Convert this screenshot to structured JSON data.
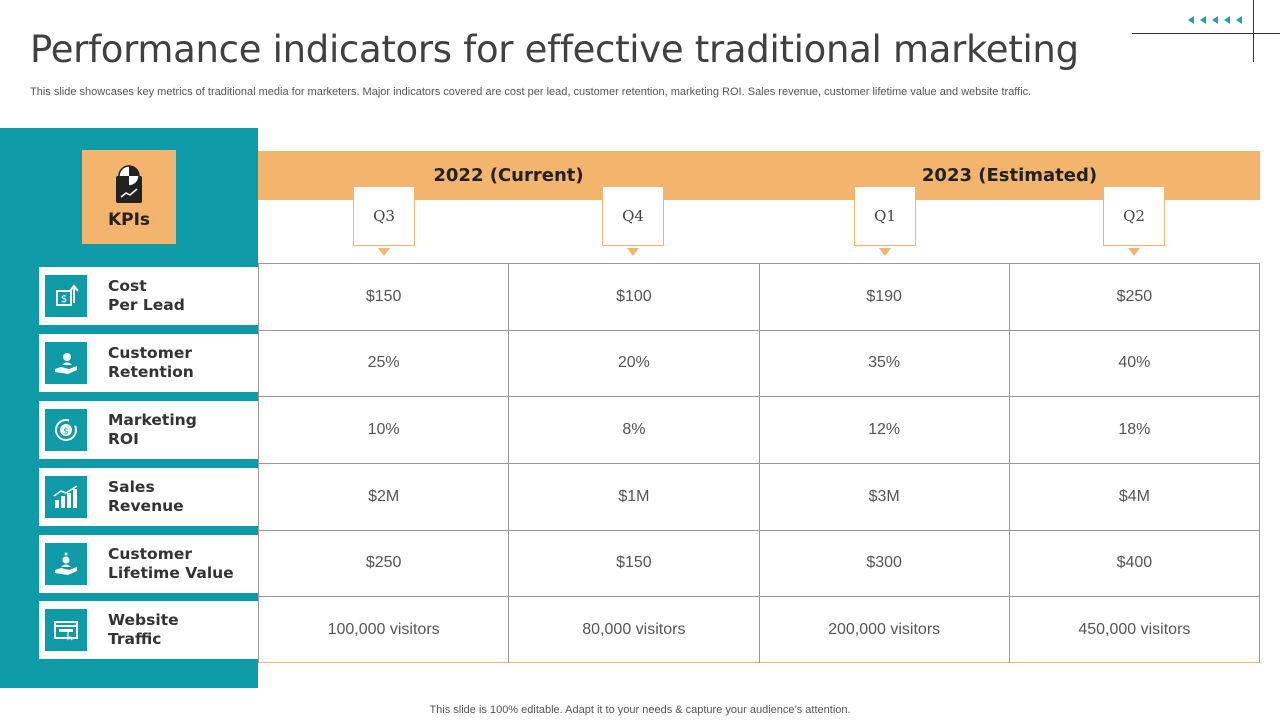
{
  "title": "Performance indicators for effective traditional marketing",
  "subtitle": "This slide showcases key metrics of traditional media for marketers. Major indicators covered are cost per lead, customer retention, marketing ROI. Sales revenue, customer lifetime value and website traffic.",
  "footer": "This slide is 100% editable. Adapt it to your needs & capture your audience’s attention.",
  "colors": {
    "teal": "#0e9aa7",
    "orange": "#f3b46e"
  },
  "kpi_header": {
    "label": "KPIs",
    "icon": "pie-chart-report-icon"
  },
  "years": [
    "2022 (Current)",
    "2023 (Estimated)"
  ],
  "quarters": [
    "Q3",
    "Q4",
    "Q1",
    "Q2"
  ],
  "kpis": [
    {
      "line1": "Cost",
      "line2": "Per Lead",
      "icon": "money-up-icon",
      "values": [
        "$150",
        "$100",
        "$190",
        "$250"
      ]
    },
    {
      "line1": "Customer",
      "line2": "Retention",
      "icon": "hand-person-icon",
      "values": [
        "25%",
        "20%",
        "35%",
        "40%"
      ]
    },
    {
      "line1": "Marketing",
      "line2": "ROI",
      "icon": "coin-cycle-icon",
      "values": [
        "10%",
        "8%",
        "12%",
        "18%"
      ]
    },
    {
      "line1": "Sales",
      "line2": "Revenue",
      "icon": "growth-chart-icon",
      "values": [
        "$2M",
        "$1M",
        "$3M",
        "$4M"
      ]
    },
    {
      "line1": "Customer",
      "line2": "Lifetime Value",
      "icon": "hand-user-icon",
      "values": [
        "$250",
        "$150",
        "$300",
        "$400"
      ]
    },
    {
      "line1": "Website",
      "line2": "Traffic",
      "icon": "browser-window-icon",
      "values": [
        "100,000 visitors",
        "80,000 visitors",
        "200,000 visitors",
        "450,000 visitors"
      ]
    }
  ]
}
